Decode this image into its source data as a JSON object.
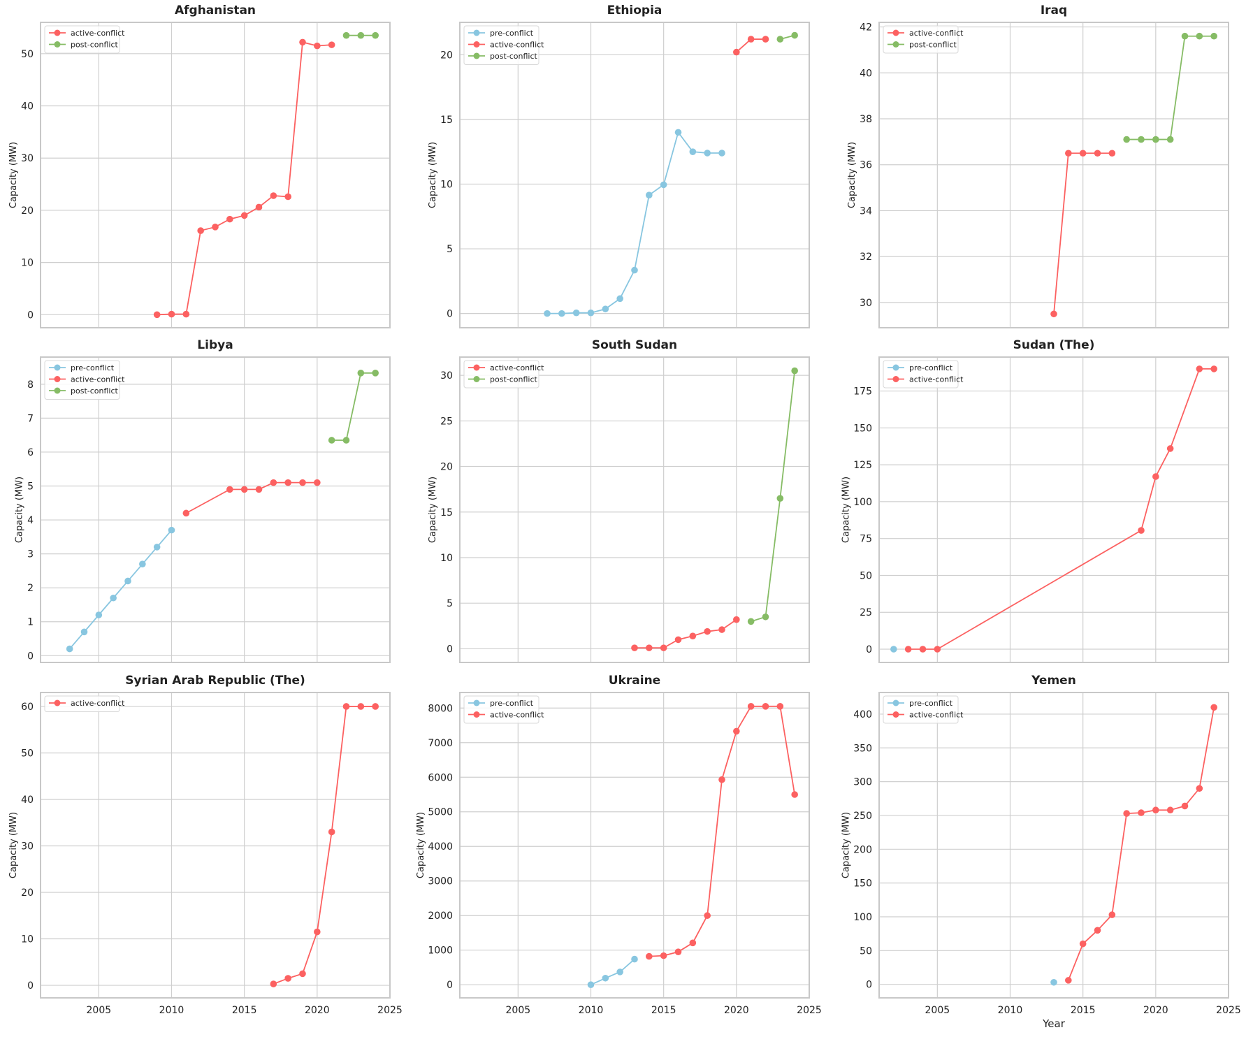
{
  "colors": {
    "pre-conflict": "#88c6e0",
    "active-conflict": "#fc6161",
    "post-conflict": "#86bc65",
    "grid": "#cfcfcf",
    "frame": "#c8c8c8"
  },
  "chart_data": [
    {
      "type": "line",
      "title": "Afghanistan",
      "ylabel": "Capacity (MW)",
      "xlabel": "",
      "xlim": [
        2001,
        2025
      ],
      "ylim": [
        -2.5,
        56
      ],
      "xticks": [
        2005,
        2010,
        2015,
        2020,
        2025
      ],
      "yticks": [
        0,
        10,
        20,
        30,
        40,
        50
      ],
      "grid": true,
      "legend": "top-left",
      "series": [
        {
          "name": "active-conflict",
          "x": [
            2009,
            2010,
            2011,
            2012,
            2013,
            2014,
            2015,
            2016,
            2017,
            2018,
            2019,
            2020,
            2021
          ],
          "y": [
            0,
            0.1,
            0.1,
            16.1,
            16.8,
            18.3,
            19.0,
            20.6,
            22.8,
            22.6,
            52.2,
            51.5,
            51.7
          ]
        },
        {
          "name": "post-conflict",
          "x": [
            2022,
            2023,
            2024
          ],
          "y": [
            53.5,
            53.5,
            53.5
          ]
        }
      ]
    },
    {
      "type": "line",
      "title": "Ethiopia",
      "ylabel": "Capacity (MW)",
      "xlabel": "",
      "xlim": [
        2001,
        2025
      ],
      "ylim": [
        -1.1,
        22.5
      ],
      "xticks": [
        2005,
        2010,
        2015,
        2020,
        2025
      ],
      "yticks": [
        0,
        5,
        10,
        15,
        20
      ],
      "grid": true,
      "legend": "top-left",
      "series": [
        {
          "name": "pre-conflict",
          "x": [
            2007,
            2008,
            2009,
            2010,
            2011,
            2012,
            2013,
            2014,
            2015,
            2016,
            2017,
            2018,
            2019
          ],
          "y": [
            0,
            0,
            0.05,
            0.05,
            0.35,
            1.15,
            3.35,
            9.15,
            9.95,
            14.0,
            12.5,
            12.4,
            12.4
          ]
        },
        {
          "name": "active-conflict",
          "x": [
            2020,
            2021,
            2022
          ],
          "y": [
            20.2,
            21.2,
            21.2
          ]
        },
        {
          "name": "post-conflict",
          "x": [
            2023,
            2024
          ],
          "y": [
            21.2,
            21.5
          ]
        }
      ]
    },
    {
      "type": "line",
      "title": "Iraq",
      "ylabel": "Capacity (MW)",
      "xlabel": "",
      "xlim": [
        2001,
        2025
      ],
      "ylim": [
        28.9,
        42.2
      ],
      "xticks": [
        2005,
        2010,
        2015,
        2020,
        2025
      ],
      "yticks": [
        30,
        32,
        34,
        36,
        38,
        40,
        42
      ],
      "grid": true,
      "legend": "top-left",
      "series": [
        {
          "name": "active-conflict",
          "x": [
            2013,
            2014,
            2015,
            2016,
            2017
          ],
          "y": [
            29.5,
            36.5,
            36.5,
            36.5,
            36.5
          ]
        },
        {
          "name": "post-conflict",
          "x": [
            2018,
            2019,
            2020,
            2021,
            2022,
            2023,
            2024
          ],
          "y": [
            37.1,
            37.1,
            37.1,
            37.1,
            41.6,
            41.6,
            41.6
          ]
        }
      ]
    },
    {
      "type": "line",
      "title": "Libya",
      "ylabel": "Capacity (MW)",
      "xlabel": "",
      "xlim": [
        2001,
        2025
      ],
      "ylim": [
        -0.2,
        8.8
      ],
      "xticks": [
        2005,
        2010,
        2015,
        2020,
        2025
      ],
      "yticks": [
        0,
        1,
        2,
        3,
        4,
        5,
        6,
        7,
        8
      ],
      "grid": true,
      "legend": "top-left",
      "series": [
        {
          "name": "pre-conflict",
          "x": [
            2003,
            2004,
            2005,
            2006,
            2007,
            2008,
            2009,
            2010
          ],
          "y": [
            0.2,
            0.7,
            1.2,
            1.7,
            2.2,
            2.7,
            3.2,
            3.7
          ]
        },
        {
          "name": "active-conflict",
          "x": [
            2011,
            2014,
            2015,
            2016,
            2017,
            2018,
            2019,
            2020
          ],
          "y": [
            4.2,
            4.9,
            4.9,
            4.9,
            5.1,
            5.1,
            5.1,
            5.1
          ]
        },
        {
          "name": "post-conflict",
          "x": [
            2021,
            2022,
            2023,
            2024
          ],
          "y": [
            6.35,
            6.35,
            8.33,
            8.33
          ]
        }
      ]
    },
    {
      "type": "line",
      "title": "South Sudan",
      "ylabel": "Capacity (MW)",
      "xlabel": "",
      "xlim": [
        2001,
        2025
      ],
      "ylim": [
        -1.5,
        32
      ],
      "xticks": [
        2005,
        2010,
        2015,
        2020,
        2025
      ],
      "yticks": [
        0,
        5,
        10,
        15,
        20,
        25,
        30
      ],
      "grid": true,
      "legend": "top-left",
      "series": [
        {
          "name": "active-conflict",
          "x": [
            2013,
            2014,
            2015,
            2016,
            2017,
            2018,
            2019,
            2020
          ],
          "y": [
            0.1,
            0.1,
            0.1,
            1.0,
            1.4,
            1.9,
            2.1,
            3.2
          ]
        },
        {
          "name": "post-conflict",
          "x": [
            2021,
            2022,
            2023,
            2024
          ],
          "y": [
            3.0,
            3.5,
            16.5,
            30.5
          ]
        }
      ]
    },
    {
      "type": "line",
      "title": "Sudan (The)",
      "ylabel": "Capacity (MW)",
      "xlabel": "",
      "xlim": [
        2001,
        2025
      ],
      "ylim": [
        -9,
        198
      ],
      "xticks": [
        2005,
        2010,
        2015,
        2020,
        2025
      ],
      "yticks": [
        0,
        25,
        50,
        75,
        100,
        125,
        150,
        175
      ],
      "grid": true,
      "legend": "top-left",
      "series": [
        {
          "name": "pre-conflict",
          "x": [
            2002
          ],
          "y": [
            0
          ]
        },
        {
          "name": "active-conflict",
          "x": [
            2003,
            2004,
            2005,
            2019,
            2020,
            2021,
            2023,
            2024
          ],
          "y": [
            0,
            0,
            0,
            80.5,
            117,
            136,
            190,
            190
          ]
        }
      ]
    },
    {
      "type": "line",
      "title": "Syrian Arab Republic (The)",
      "ylabel": "Capacity (MW)",
      "xlabel": "",
      "xlim": [
        2001,
        2025
      ],
      "ylim": [
        -2.7,
        63
      ],
      "xticks": [
        2005,
        2010,
        2015,
        2020,
        2025
      ],
      "yticks": [
        0,
        10,
        20,
        30,
        40,
        50,
        60
      ],
      "grid": true,
      "legend": "top-left",
      "series": [
        {
          "name": "active-conflict",
          "x": [
            2017,
            2018,
            2019,
            2020,
            2021,
            2022,
            2023,
            2024
          ],
          "y": [
            0.3,
            1.5,
            2.5,
            11.5,
            33,
            60,
            60,
            60
          ]
        }
      ]
    },
    {
      "type": "line",
      "title": "Ukraine",
      "ylabel": "Capacity (MW)",
      "xlabel": "",
      "xlim": [
        2001,
        2025
      ],
      "ylim": [
        -380,
        8450
      ],
      "xticks": [
        2005,
        2010,
        2015,
        2020,
        2025
      ],
      "yticks": [
        0,
        1000,
        2000,
        3000,
        4000,
        5000,
        6000,
        7000,
        8000
      ],
      "grid": true,
      "legend": "top-left",
      "series": [
        {
          "name": "pre-conflict",
          "x": [
            2010,
            2011,
            2012,
            2013
          ],
          "y": [
            0,
            190,
            370,
            740
          ]
        },
        {
          "name": "active-conflict",
          "x": [
            2014,
            2015,
            2016,
            2017,
            2018,
            2019,
            2020,
            2021,
            2022,
            2023,
            2024
          ],
          "y": [
            820,
            840,
            950,
            1210,
            2000,
            5930,
            7330,
            8050,
            8050,
            8050,
            5500
          ]
        }
      ]
    },
    {
      "type": "line",
      "title": "Yemen",
      "ylabel": "Capacity (MW)",
      "xlabel": "Year",
      "xlim": [
        2001,
        2025
      ],
      "ylim": [
        -20,
        432
      ],
      "xticks": [
        2005,
        2010,
        2015,
        2020,
        2025
      ],
      "yticks": [
        0,
        50,
        100,
        150,
        200,
        250,
        300,
        350,
        400
      ],
      "grid": true,
      "legend": "top-left",
      "series": [
        {
          "name": "pre-conflict",
          "x": [
            2013
          ],
          "y": [
            3
          ]
        },
        {
          "name": "active-conflict",
          "x": [
            2014,
            2015,
            2016,
            2017,
            2018,
            2019,
            2020,
            2021,
            2022,
            2023,
            2024
          ],
          "y": [
            6,
            60,
            80,
            103,
            253,
            254,
            258,
            258,
            264,
            290,
            410
          ]
        }
      ]
    }
  ]
}
